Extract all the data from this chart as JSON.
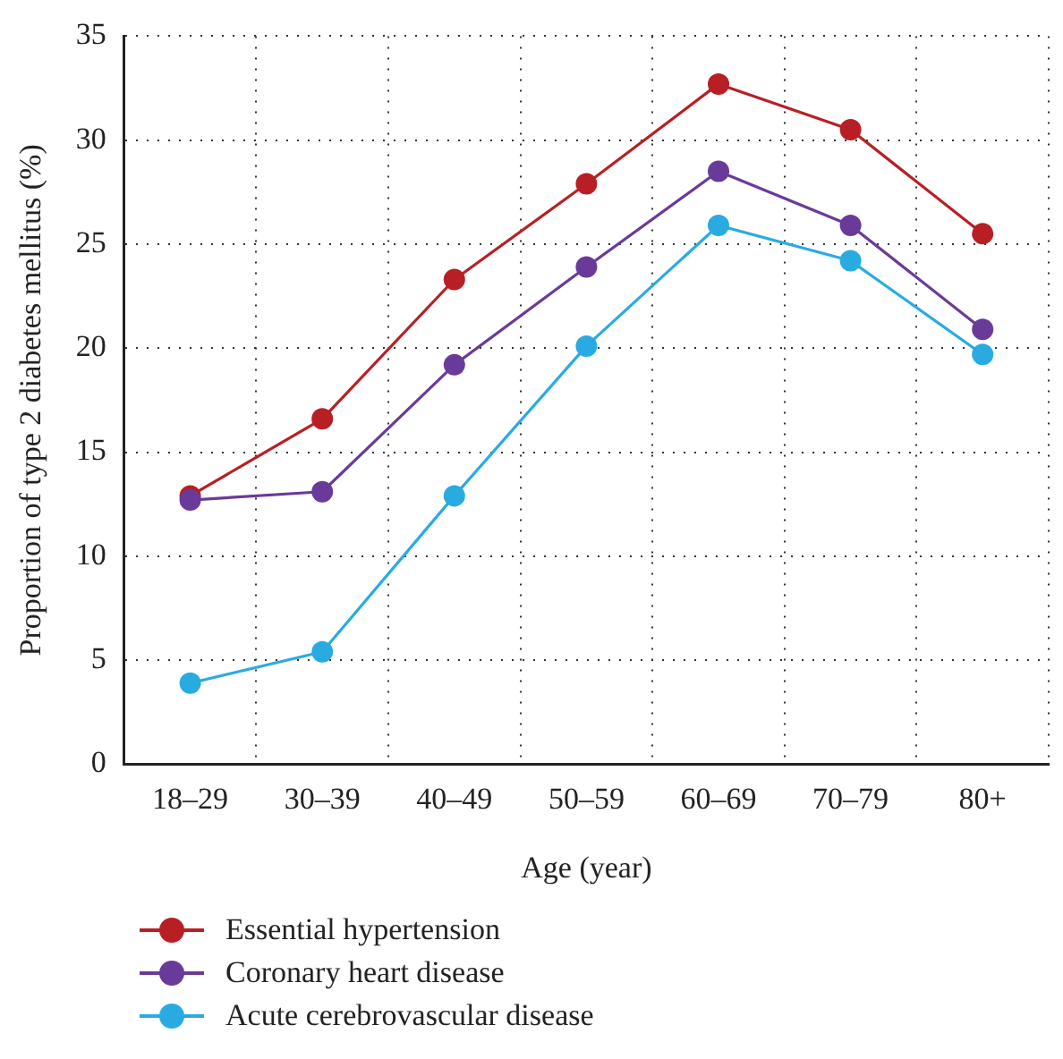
{
  "chart_data": {
    "type": "line",
    "xlabel": "Age (year)",
    "ylabel": "Proportion of type 2 diabetes mellitus (%)",
    "categories": [
      "18–29",
      "30–39",
      "40–49",
      "50–59",
      "60–69",
      "70–79",
      "80+"
    ],
    "series": [
      {
        "name": "Essential hypertension",
        "color": "#b81f24",
        "values": [
          12.9,
          16.6,
          23.3,
          27.9,
          32.7,
          30.5,
          25.5
        ]
      },
      {
        "name": "Coronary heart disease",
        "color": "#6a3a9a",
        "values": [
          12.7,
          13.1,
          19.2,
          23.9,
          28.5,
          25.9,
          20.9
        ]
      },
      {
        "name": "Acute cerebrovascular disease",
        "color": "#29abe2",
        "values": [
          3.9,
          5.4,
          12.9,
          20.1,
          25.9,
          24.2,
          19.7
        ]
      }
    ],
    "ylim": [
      0,
      35
    ],
    "yticks": [
      0,
      5,
      10,
      15,
      20,
      25,
      30,
      35
    ],
    "grid": true,
    "legend": "bottom left",
    "marker": "circle",
    "line_style": "solid"
  }
}
